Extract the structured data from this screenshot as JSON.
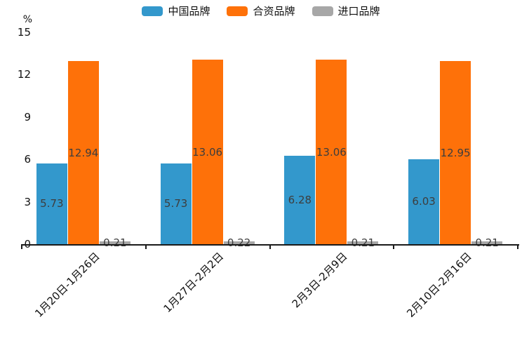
{
  "unit_label": "%",
  "chart_data": {
    "type": "bar",
    "title": "",
    "xlabel": "",
    "ylabel": "%",
    "categories": [
      "1月20日-1月26日",
      "1月27日-2月2日",
      "2月3日-2月9日",
      "2月10日-2月16日"
    ],
    "series": [
      {
        "name": "中国品牌",
        "color": "#3398cc",
        "values": [
          5.73,
          5.73,
          6.28,
          6.03
        ]
      },
      {
        "name": "合资品牌",
        "color": "#fe7109",
        "values": [
          12.94,
          13.06,
          13.06,
          12.95
        ]
      },
      {
        "name": "进口品牌",
        "color": "#a7a7a7",
        "values": [
          0.21,
          0.22,
          0.21,
          0.21
        ]
      }
    ],
    "yticks": [
      0,
      3,
      6,
      9,
      12,
      15
    ],
    "ylim": [
      0,
      15
    ],
    "grid": false,
    "legend_position": "top-center",
    "value_labels": true,
    "value_label_decimals": 2,
    "x_label_rotation_deg": 45
  }
}
